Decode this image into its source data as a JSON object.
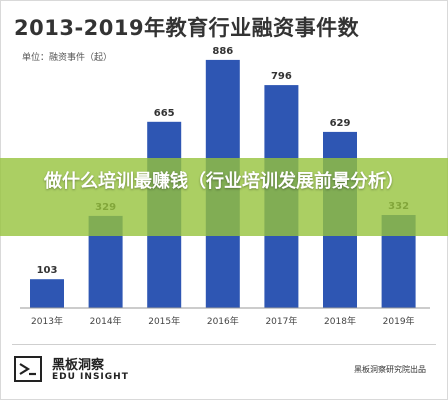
{
  "header": {
    "title": "2013-2019年教育行业融资事件数",
    "unit": "单位：融资事件（起）"
  },
  "banner": {
    "text": "做什么培训最赚钱（行业培训发展前景分析）"
  },
  "footer": {
    "logo_cn": "黑板洞察",
    "logo_en": "EDU INSIGHT",
    "source": "黑板洞察研究院出品"
  },
  "colors": {
    "bar": "#2e56b3",
    "banner": "#96c33c",
    "axis": "#999999"
  },
  "chart_data": {
    "type": "bar",
    "categories": [
      "2013年",
      "2014年",
      "2015年",
      "2016年",
      "2017年",
      "2018年",
      "2019年"
    ],
    "values": [
      103,
      329,
      665,
      886,
      796,
      629,
      332
    ],
    "title": "2013-2019年教育行业融资事件数",
    "xlabel": "",
    "ylabel": "",
    "ylim": [
      0,
      1000
    ],
    "grid": false,
    "legend": "none",
    "data_labels": true
  }
}
